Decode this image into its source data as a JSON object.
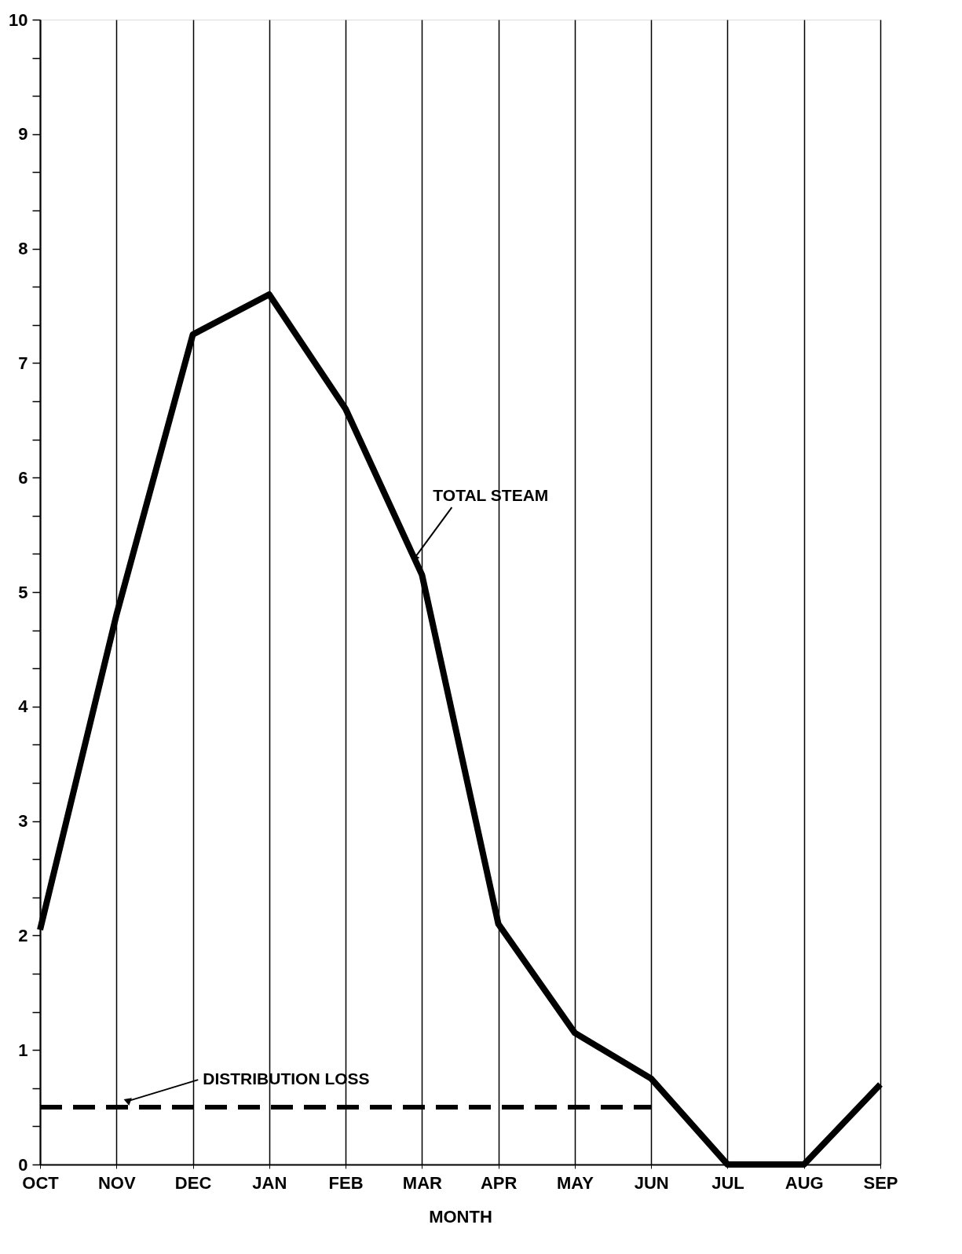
{
  "chart_data": {
    "type": "line",
    "xlabel": "MONTH",
    "categories": [
      "OCT",
      "NOV",
      "DEC",
      "JAN",
      "FEB",
      "MAR",
      "APR",
      "MAY",
      "JUN",
      "JUL",
      "AUG",
      "SEP"
    ],
    "ylim": [
      0,
      10
    ],
    "yticks": [
      0,
      {
        "value": 0.333,
        "label": null
      },
      {
        "value": 0.667,
        "label": null
      },
      1,
      {
        "value": 1.333,
        "label": null
      },
      {
        "value": 1.667,
        "label": null
      },
      2,
      {
        "value": 2.333,
        "label": null
      },
      {
        "value": 2.667,
        "label": null
      },
      3,
      {
        "value": 3.333,
        "label": null
      },
      {
        "value": 3.667,
        "label": null
      },
      4,
      {
        "value": 4.333,
        "label": null
      },
      {
        "value": 4.667,
        "label": null
      },
      5,
      {
        "value": 5.333,
        "label": null
      },
      {
        "value": 5.667,
        "label": null
      },
      6,
      {
        "value": 6.333,
        "label": null
      },
      {
        "value": 6.667,
        "label": null
      },
      7,
      {
        "value": 7.333,
        "label": null
      },
      {
        "value": 7.667,
        "label": null
      },
      8,
      {
        "value": 8.333,
        "label": null
      },
      {
        "value": 8.667,
        "label": null
      },
      9,
      {
        "value": 9.333,
        "label": null
      },
      {
        "value": 9.667,
        "label": null
      },
      10
    ],
    "grid": "x",
    "legend": false,
    "marker": "none",
    "series": [
      {
        "name": "TOTAL STEAM",
        "color": "#000000",
        "line_style": "solid",
        "values": [
          2.05,
          4.8,
          7.25,
          7.6,
          6.6,
          5.15,
          2.1,
          1.15,
          0.75,
          0,
          0,
          0.7
        ]
      },
      {
        "name": "DISTRIBUTION LOSS",
        "color": "#000000",
        "line_style": "dashed",
        "values": [
          0.5,
          0.5,
          0.5,
          0.5,
          0.5,
          0.5,
          0.5,
          0.5,
          0.5,
          null,
          null,
          null
        ]
      }
    ]
  }
}
